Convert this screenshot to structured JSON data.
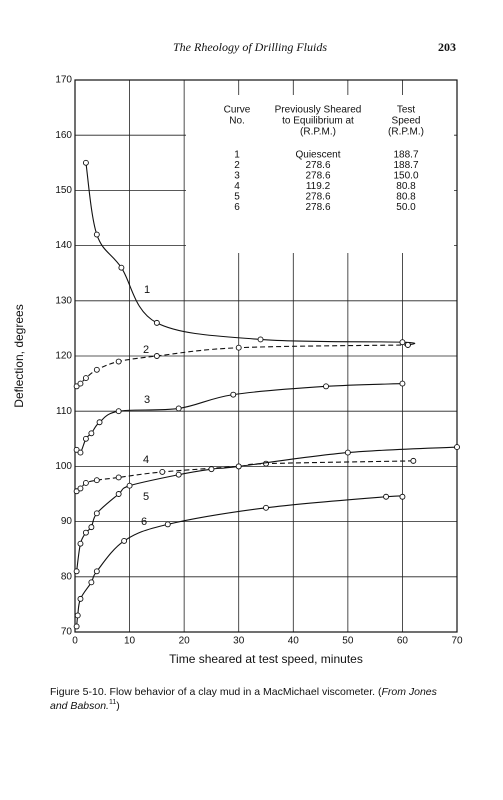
{
  "header": {
    "title": "The Rheology of Drilling Fluids",
    "page": "203"
  },
  "chart_data": {
    "type": "line",
    "xlabel": "Time sheared at test speed, minutes",
    "ylabel": "Deflection, degrees",
    "xlim": [
      0,
      70
    ],
    "ylim": [
      70,
      170
    ],
    "xticks": [
      0,
      10,
      20,
      30,
      40,
      50,
      60,
      70
    ],
    "yticks": [
      70,
      80,
      90,
      100,
      110,
      120,
      130,
      140,
      150,
      160,
      170
    ],
    "grid": true,
    "color": "#111",
    "series": [
      {
        "name": "1",
        "line_style": "solid",
        "x": [
          2,
          4,
          8.5,
          15,
          34,
          60,
          61
        ],
        "values": [
          155,
          142,
          136,
          126,
          123,
          122.5,
          122
        ]
      },
      {
        "name": "2",
        "line_style": "dashed",
        "x": [
          0.3,
          1,
          2,
          4,
          8,
          15,
          30,
          61
        ],
        "values": [
          114.5,
          115,
          116,
          117.5,
          119,
          120,
          121.5,
          122
        ]
      },
      {
        "name": "3",
        "line_style": "solid",
        "x": [
          0.3,
          1,
          2,
          3,
          4.5,
          8,
          19,
          29,
          46,
          60
        ],
        "values": [
          103,
          102.5,
          105,
          106,
          108,
          110,
          110.5,
          113,
          114.5,
          115
        ]
      },
      {
        "name": "4",
        "line_style": "dashed",
        "x": [
          0.3,
          1,
          2,
          4,
          8,
          16,
          30,
          35,
          62
        ],
        "values": [
          95.5,
          96,
          97,
          97.5,
          98,
          99,
          100,
          100.5,
          101
        ]
      },
      {
        "name": "5",
        "line_style": "solid",
        "x": [
          0.3,
          1,
          2,
          3,
          4,
          8,
          10,
          19,
          25,
          30,
          50,
          70
        ],
        "values": [
          81,
          86,
          88,
          89,
          91.5,
          95,
          96.5,
          98.5,
          99.5,
          100,
          102.5,
          103.5
        ]
      },
      {
        "name": "6",
        "line_style": "solid",
        "x": [
          0.3,
          0.5,
          1,
          3,
          4,
          9,
          17,
          35,
          57,
          60
        ],
        "values": [
          71,
          73,
          76,
          79,
          81,
          86.5,
          89.5,
          92.5,
          94.5,
          94.5
        ]
      }
    ]
  },
  "table": {
    "columns": [
      [
        "Curve",
        "No."
      ],
      [
        "Previously Sheared",
        "to Equilibrium at",
        "(R.P.M.)"
      ],
      [
        "Test",
        "Speed",
        "(R.P.M.)"
      ]
    ],
    "rows": [
      [
        "1",
        "Quiescent",
        "188.7"
      ],
      [
        "2",
        "278.6",
        "188.7"
      ],
      [
        "3",
        "278.6",
        "150.0"
      ],
      [
        "4",
        "119.2",
        "80.8"
      ],
      [
        "5",
        "278.6",
        "80.8"
      ],
      [
        "6",
        "278.6",
        "50.0"
      ]
    ]
  },
  "caption": {
    "text": "Figure 5-10. Flow behavior of a clay mud in a MacMichael viscometer. (",
    "source": "From Jones and Babson.",
    "ref": "11",
    "end": ")"
  }
}
